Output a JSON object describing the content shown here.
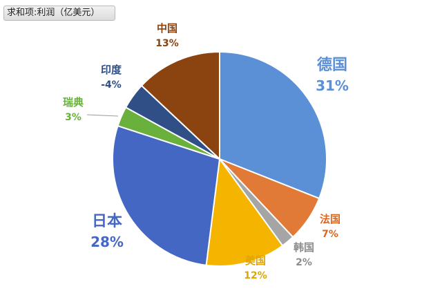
{
  "field_button": {
    "label": "求和项:利润（亿美元）"
  },
  "chart_data": {
    "type": "pie",
    "title": "",
    "slices": [
      {
        "name": "德国",
        "value": 31,
        "label": "31%",
        "color": "#5b8fd6",
        "label_color": "#5b8fd6",
        "size": "large"
      },
      {
        "name": "法国",
        "value": 7,
        "label": "7%",
        "color": "#e07a36",
        "label_color": "#d9661f",
        "size": "small"
      },
      {
        "name": "韩国",
        "value": 2,
        "label": "2%",
        "color": "#a5a5a5",
        "label_color": "#8c8c8c",
        "size": "small"
      },
      {
        "name": "美国",
        "value": 12,
        "label": "12%",
        "color": "#f4b400",
        "label_color": "#e0a500",
        "size": "small"
      },
      {
        "name": "日本",
        "value": 28,
        "label": "28%",
        "color": "#4467c4",
        "label_color": "#4467c4",
        "size": "large"
      },
      {
        "name": "瑞典",
        "value": 3,
        "label": "3%",
        "color": "#6ab03d",
        "label_color": "#6ab03d",
        "size": "small"
      },
      {
        "name": "印度",
        "value": 4,
        "label": "-4%",
        "color": "#2f4f86",
        "label_color": "#2f4f86",
        "size": "small"
      },
      {
        "name": "中国",
        "value": 13,
        "label": "13%",
        "color": "#8b4310",
        "label_color": "#8b4310",
        "size": "small"
      }
    ]
  }
}
